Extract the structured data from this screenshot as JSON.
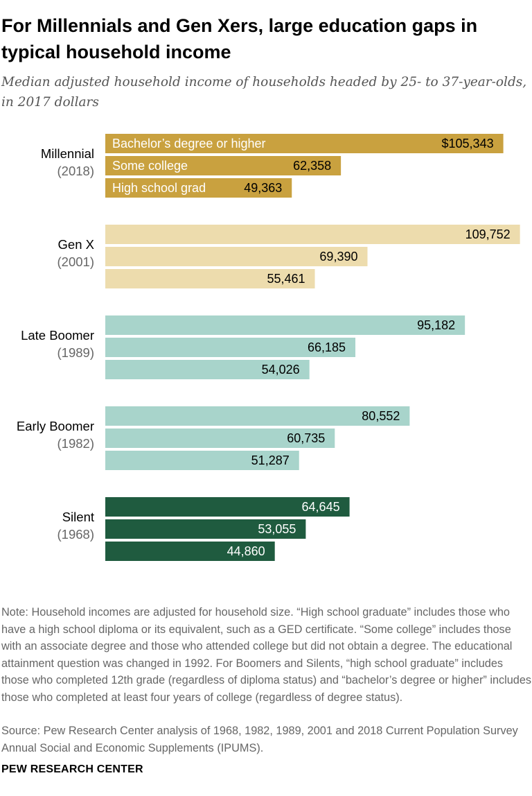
{
  "title": "For Millennials and Gen Xers, large education gaps in typical household income",
  "subtitle": "Median adjusted household income of households headed by 25- to 37-year-olds, in 2017 dollars",
  "note": "Note: Household incomes are adjusted for household size. “High school graduate” includes those who have a high school diploma or its equivalent, such as a GED certificate. “Some college” includes those with an associate degree and those who attended college but did not obtain a degree. The educational attainment question was changed in 1992. For Boomers and Silents, “high school graduate” includes those who completed 12th grade (regardless of diploma status) and “bachelor’s degree or higher” includes those who completed at least four years of college (regardless of degree status).",
  "source": "Source: Pew Research Center analysis of 1968, 1982, 1989, 2001 and 2018 Current Population Survey Annual Social and Economic Supplements (IPUMS).",
  "brand": "PEW RESEARCH CENTER",
  "chart_data": {
    "type": "bar",
    "orientation": "horizontal",
    "xlim": [
      0,
      110000
    ],
    "series_names": [
      "Bachelor’s degree or higher",
      "Some college",
      "High school grad"
    ],
    "groups": [
      {
        "name": "Millennial",
        "year": "(2018)",
        "color": "#c9a13f",
        "label_color": "#000000",
        "series_label_color": "#ffffff",
        "values": [
          105343,
          62358,
          49363
        ],
        "labels": [
          "$105,343",
          "62,358",
          "49,363"
        ]
      },
      {
        "name": "Gen X",
        "year": "(2001)",
        "color": "#eddcad",
        "label_color": "#000000",
        "values": [
          109752,
          69390,
          55461
        ],
        "labels": [
          "109,752",
          "69,390",
          "55,461"
        ]
      },
      {
        "name": "Late Boomer",
        "year": "(1989)",
        "color": "#a8d4cb",
        "label_color": "#000000",
        "values": [
          95182,
          66185,
          54026
        ],
        "labels": [
          "95,182",
          "66,185",
          "54,026"
        ]
      },
      {
        "name": "Early Boomer",
        "year": "(1982)",
        "color": "#a8d4cb",
        "label_color": "#000000",
        "values": [
          80552,
          60735,
          51287
        ],
        "labels": [
          "80,552",
          "60,735",
          "51,287"
        ]
      },
      {
        "name": "Silent",
        "year": "(1968)",
        "color": "#1f5b3f",
        "label_color": "#ffffff",
        "values": [
          64645,
          53055,
          44860
        ],
        "labels": [
          "64,645",
          "53,055",
          "44,860"
        ]
      }
    ]
  }
}
